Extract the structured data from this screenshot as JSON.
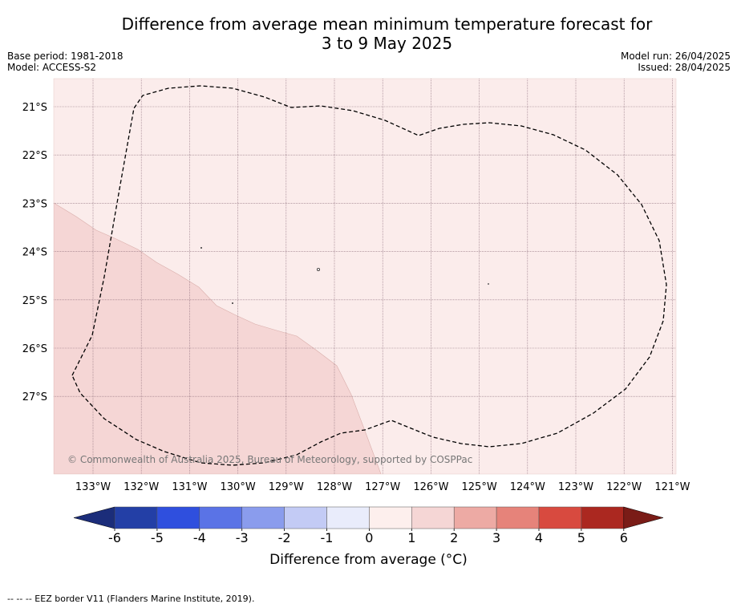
{
  "title_line1": "Difference from average mean minimum temperature forecast for",
  "title_line2": "3 to 9 May 2025",
  "meta_left": {
    "base_period": "Base period: 1981-2018",
    "model": "Model: ACCESS-S2"
  },
  "meta_right": {
    "model_run": "Model run: 26/04/2025",
    "issued": "Issued: 28/04/2025"
  },
  "map": {
    "lat_ticks": [
      "21°S",
      "22°S",
      "23°S",
      "24°S",
      "25°S",
      "26°S",
      "27°S"
    ],
    "lon_ticks": [
      "133°W",
      "132°W",
      "131°W",
      "130°W",
      "129°W",
      "128°W",
      "127°W",
      "126°W",
      "125°W",
      "124°W",
      "123°W",
      "122°W",
      "121°W"
    ],
    "background_color": "#fbeceb",
    "anomaly_region_color": "#f5d6d5",
    "copyright": "© Commonwealth of Australia 2025, Bureau of Meteorology, supported by COSPPac"
  },
  "colorbar": {
    "label": "Difference from average (°C)",
    "ticks": [
      "-6",
      "-5",
      "-4",
      "-3",
      "-2",
      "-1",
      "0",
      "1",
      "2",
      "3",
      "4",
      "5",
      "6"
    ],
    "colors": [
      "#233fa6",
      "#2f4fde",
      "#5a73e6",
      "#8a9ced",
      "#c3cbf5",
      "#e9ecfb",
      "#fdefed",
      "#f5d6d5",
      "#edaaa4",
      "#e6837a",
      "#d84a3f",
      "#ab2820"
    ],
    "low_extend_color": "#1b2d7a",
    "high_extend_color": "#7a1c17"
  },
  "footnote": "-- -- -- EEZ border V11 (Flanders Marine Institute, 2019)."
}
